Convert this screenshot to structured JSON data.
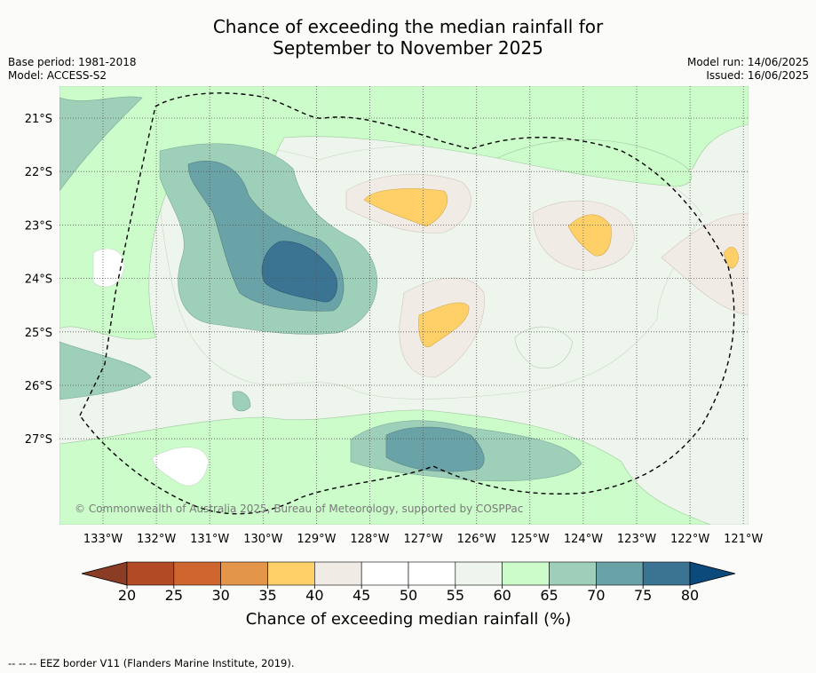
{
  "title_line1": "Chance of exceeding the median rainfall for",
  "title_line2": "September to November 2025",
  "base_period": "Base period: 1981-2018",
  "model": "Model: ACCESS-S2",
  "model_run": "Model run: 14/06/2025",
  "issued": "Issued: 16/06/2025",
  "copyright": "© Commonwealth of Australia 2025, Bureau of Meteorology, supported by COSPPac",
  "colorbar_label": "Chance of exceeding median rainfall (%)",
  "footer_note": "--  --  -- EEZ border V11 (Flanders Marine Institute, 2019).",
  "chart_data": {
    "type": "heatmap",
    "x_ticks": [
      "133°W",
      "132°W",
      "131°W",
      "130°W",
      "129°W",
      "128°W",
      "127°W",
      "126°W",
      "125°W",
      "124°W",
      "123°W",
      "122°W",
      "121°W"
    ],
    "y_ticks": [
      "21°S",
      "22°S",
      "23°S",
      "24°S",
      "25°S",
      "26°S",
      "27°S"
    ],
    "colorbar_ticks": [
      "20",
      "25",
      "30",
      "35",
      "40",
      "45",
      "50",
      "55",
      "60",
      "65",
      "70",
      "75",
      "80"
    ],
    "colorbar_colors": [
      "#8a3c24",
      "#b24a26",
      "#d0662f",
      "#e3954a",
      "#fed067",
      "#f1ebe6",
      "#ffffff",
      "#ffffff",
      "#edf5ec",
      "#cbfcca",
      "#9ecfb8",
      "#6aa3a7",
      "#3b7493",
      "#0d4a7c"
    ],
    "regions": [
      {
        "label": "high 75-80",
        "value": 77,
        "lon": -129.4,
        "lat": -23.9
      },
      {
        "label": "high 70-75",
        "value": 72,
        "lon": -130.6,
        "lat": -23.0
      },
      {
        "label": "high 70-75 south",
        "value": 72,
        "lon": -126.8,
        "lat": -27.3
      },
      {
        "label": "low 35-40",
        "value": 38,
        "lon": -127.5,
        "lat": -22.8
      },
      {
        "label": "low 35-40 centre",
        "value": 38,
        "lon": -126.8,
        "lat": -24.9
      },
      {
        "label": "low 35-40 east",
        "value": 38,
        "lon": -124.0,
        "lat": -23.1
      },
      {
        "label": "low 35-40 far east",
        "value": 37,
        "lon": -121.3,
        "lat": -23.6
      }
    ]
  }
}
